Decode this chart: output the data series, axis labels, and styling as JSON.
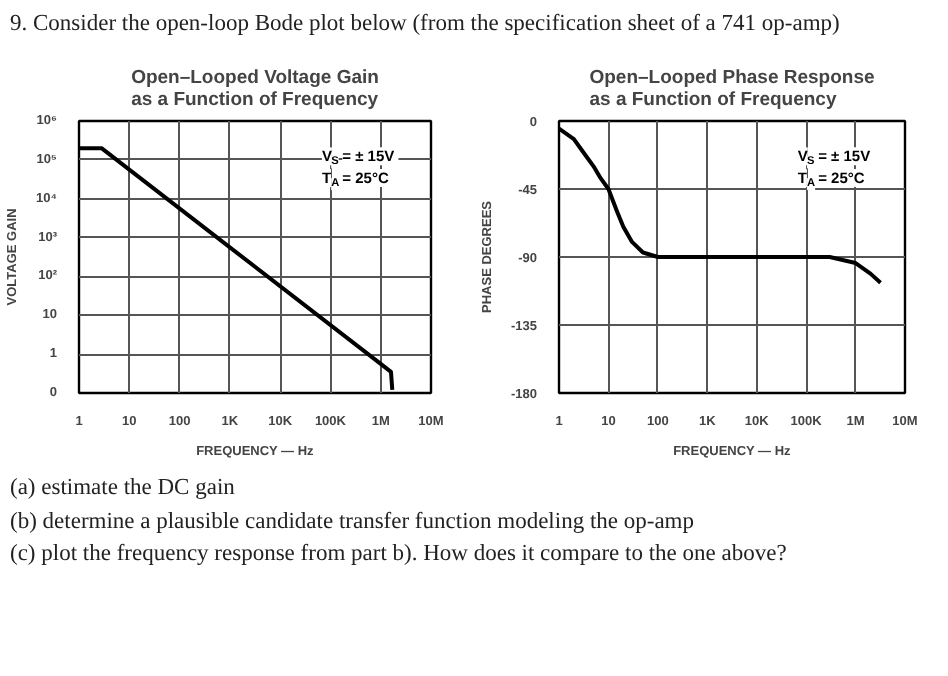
{
  "chart_data": [
    {
      "type": "other",
      "annotations": [
        "9. Consider the open-loop Bode plot below (from the specification sheet of a 741 op-amp)"
      ]
    },
    {
      "type": "line",
      "title": "Open–Looped Voltage Gain\nas a Function of Frequency",
      "xlabel": "FREQUENCY — Hz",
      "ylabel": "VOLTAGE GAIN",
      "log": "xy",
      "grid": true,
      "marker": "none",
      "line_style": "solid",
      "xlim": [
        1,
        10000000
      ],
      "ylim": [
        0.1,
        1000000
      ],
      "xticks": [
        1,
        10,
        100,
        {
          "value": 1000,
          "label": "1K"
        },
        {
          "value": 10000,
          "label": "10K"
        },
        {
          "value": 100000,
          "label": "100K"
        },
        {
          "value": 1000000,
          "label": "1M"
        },
        {
          "value": 10000000,
          "label": "10M"
        }
      ],
      "yticks": [
        {
          "value": 0.1,
          "label": "0"
        },
        1,
        10,
        {
          "value": 100,
          "label": "10²"
        },
        {
          "value": 1000,
          "label": "10³"
        },
        {
          "value": 10000,
          "label": "10⁴"
        },
        {
          "value": 100000,
          "label": "10⁵"
        },
        {
          "value": 1000000,
          "label": "10⁶"
        }
      ],
      "x": [
        1,
        2.8,
        1000000,
        1600000,
        1700000
      ],
      "series": [
        {
          "color": "#000000",
          "values": [
            200000,
            200000,
            0.56,
            0.35,
            0.12
          ]
        }
      ],
      "annotations": [
        "V$_{S}$ = ± 15V",
        "T$_{A}$ = 25°C"
      ]
    },
    {
      "type": "line",
      "title": "Open–Looped Phase Response\nas a Function of Frequency",
      "xlabel": "FREQUENCY — Hz",
      "ylabel": "PHASE DEGREES",
      "log": "x",
      "grid": true,
      "marker": "none",
      "line_style": "solid",
      "xlim": [
        1,
        10000000
      ],
      "ylim": [
        -180,
        0
      ],
      "xticks": [
        1,
        10,
        100,
        {
          "value": 1000,
          "label": "1K"
        },
        {
          "value": 10000,
          "label": "10K"
        },
        {
          "value": 100000,
          "label": "100K"
        },
        {
          "value": 1000000,
          "label": "1M"
        },
        {
          "value": 10000000,
          "label": "10M"
        }
      ],
      "yticks": [
        0,
        -45,
        -90,
        -135,
        -180
      ],
      "x": [
        1,
        2,
        3,
        5,
        7,
        10,
        15,
        20,
        30,
        50,
        100,
        300000,
        1000000,
        2000000,
        3200000
      ],
      "series": [
        {
          "color": "#000000",
          "values": [
            -5,
            -12,
            -20,
            -30,
            -38,
            -45,
            -60,
            -70,
            -80,
            -87,
            -90,
            -90,
            -94,
            -101,
            -107
          ]
        }
      ],
      "annotations": [
        "V$_{S}$ = ± 15V",
        "T$_{A}$ = 25°C"
      ]
    },
    {
      "type": "other",
      "annotations": [
        "(a) estimate the DC gain",
        "(b) determine a plausible candidate transfer function modeling the op-amp",
        "(c) plot the frequency response from part b). How does it compare to the one above?"
      ]
    }
  ]
}
